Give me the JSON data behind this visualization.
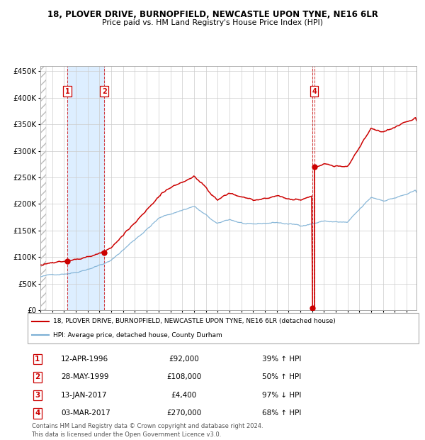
{
  "title1": "18, PLOVER DRIVE, BURNOPFIELD, NEWCASTLE UPON TYNE, NE16 6LR",
  "title2": "Price paid vs. HM Land Registry's House Price Index (HPI)",
  "ylim": [
    0,
    460000
  ],
  "yticks": [
    0,
    50000,
    100000,
    150000,
    200000,
    250000,
    300000,
    350000,
    400000,
    450000
  ],
  "ytick_labels": [
    "£0",
    "£50K",
    "£100K",
    "£150K",
    "£200K",
    "£250K",
    "£300K",
    "£350K",
    "£400K",
    "£450K"
  ],
  "xlim_start": 1994.0,
  "xlim_end": 2025.83,
  "hpi_color": "#7bafd4",
  "price_color": "#cc0000",
  "ownership_color": "#ddeeff",
  "transactions": [
    {
      "label": "1",
      "date_num": 1996.28,
      "price": 92000
    },
    {
      "label": "2",
      "date_num": 1999.41,
      "price": 108000
    },
    {
      "label": "3",
      "date_num": 2017.04,
      "price": 4400
    },
    {
      "label": "4",
      "date_num": 2017.17,
      "price": 270000
    }
  ],
  "table_rows": [
    {
      "num": "1",
      "date": "12-APR-1996",
      "price": "£92,000",
      "hpi": "39% ↑ HPI"
    },
    {
      "num": "2",
      "date": "28-MAY-1999",
      "price": "£108,000",
      "hpi": "50% ↑ HPI"
    },
    {
      "num": "3",
      "date": "13-JAN-2017",
      "price": "£4,400",
      "hpi": "97% ↓ HPI"
    },
    {
      "num": "4",
      "date": "03-MAR-2017",
      "price": "£270,000",
      "hpi": "68% ↑ HPI"
    }
  ],
  "legend1": "18, PLOVER DRIVE, BURNOPFIELD, NEWCASTLE UPON TYNE, NE16 6LR (detached house)",
  "legend2": "HPI: Average price, detached house, County Durham",
  "footnote1": "Contains HM Land Registry data © Crown copyright and database right 2024.",
  "footnote2": "This data is licensed under the Open Government Licence v3.0."
}
